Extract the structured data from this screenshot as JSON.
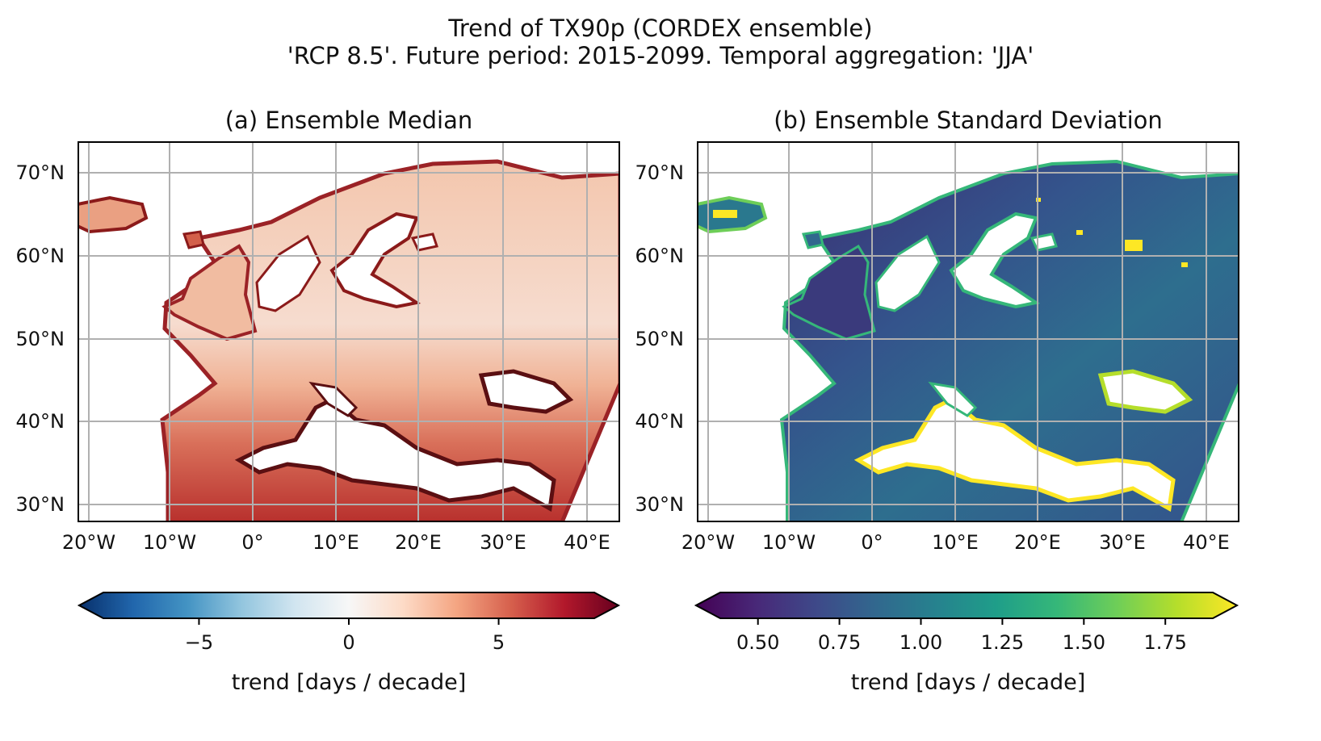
{
  "figure": {
    "title_line1": "Trend of TX90p (CORDEX ensemble)",
    "title_line2": "'RCP 8.5'. Future period: 2015-2099. Temporal aggregation: 'JJA'"
  },
  "panels": [
    {
      "title": "(a) Ensemble Median",
      "colormap": "RdBu_r",
      "lat_ticks": [
        "70°N",
        "60°N",
        "50°N",
        "40°N",
        "30°N"
      ],
      "lon_ticks": [
        "20°W",
        "10°W",
        "0°",
        "10°E",
        "20°E",
        "30°E",
        "40°E"
      ],
      "colorbar": {
        "ticks": [
          "−5",
          "0",
          "5"
        ],
        "tick_values": [
          -5,
          0,
          5
        ],
        "range": [
          -9,
          9
        ],
        "label": "trend [days / decade]",
        "extend": "both",
        "colors": [
          "#08306b",
          "#2166ac",
          "#4393c3",
          "#92c5de",
          "#d1e5f0",
          "#f7f7f7",
          "#fddbc7",
          "#f4a582",
          "#d6604d",
          "#b2182b",
          "#67001f"
        ]
      }
    },
    {
      "title": "(b) Ensemble Standard Deviation",
      "colormap": "viridis",
      "lat_ticks": [
        "70°N",
        "60°N",
        "50°N",
        "40°N",
        "30°N"
      ],
      "lon_ticks": [
        "20°W",
        "10°W",
        "0°",
        "10°E",
        "20°E",
        "30°E",
        "40°E"
      ],
      "colorbar": {
        "ticks": [
          "0.50",
          "0.75",
          "1.00",
          "1.25",
          "1.50",
          "1.75"
        ],
        "tick_values": [
          0.5,
          0.75,
          1.0,
          1.25,
          1.5,
          1.75
        ],
        "range": [
          0.31,
          1.97
        ],
        "label": "trend [days / decade]",
        "extend": "both",
        "colors": [
          "#440154",
          "#482878",
          "#3e4989",
          "#31688e",
          "#26828e",
          "#1f9e89",
          "#35b779",
          "#6ece58",
          "#b5de2b",
          "#fde725"
        ]
      }
    }
  ]
}
